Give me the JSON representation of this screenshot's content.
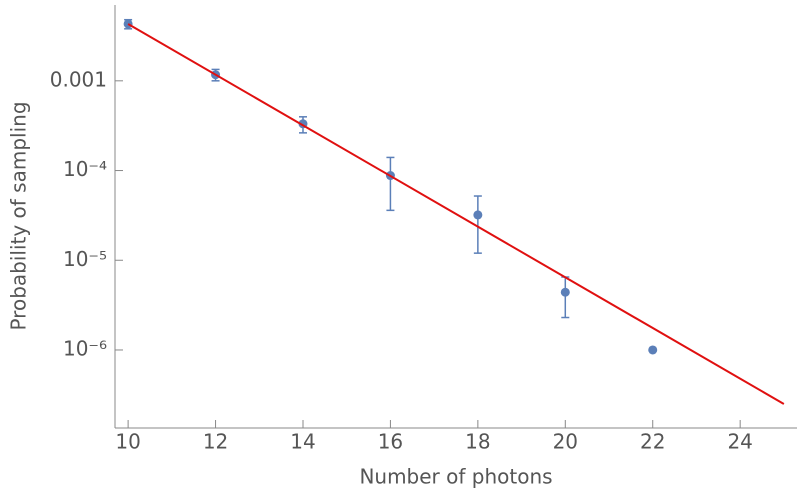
{
  "chart_data": {
    "type": "scatter",
    "x_label": "Number of photons",
    "y_label": "Probability of sampling",
    "log_y": true,
    "xlim": [
      9.7,
      25.3
    ],
    "ylim": [
      1.35e-07,
      0.007
    ],
    "xticks": [
      10,
      12,
      14,
      16,
      18,
      20,
      22,
      24
    ],
    "yticks": [
      {
        "value": 0.001,
        "label": "0.001"
      },
      {
        "value": 0.0001,
        "label": "10⁻⁴"
      },
      {
        "value": 1e-05,
        "label": "10⁻⁵"
      },
      {
        "value": 1e-06,
        "label": "10⁻⁶"
      }
    ],
    "series": [
      {
        "type": "scatter",
        "color": "#5b7fb8",
        "x": [
          10,
          12,
          14,
          16,
          18,
          20,
          22
        ],
        "values": [
          0.0043,
          0.00117,
          0.000332,
          8.8e-05,
          3.2e-05,
          4.4e-06,
          1e-06
        ],
        "y_low": [
          0.0038,
          0.001,
          0.000263,
          3.6e-05,
          1.2e-05,
          2.3e-06,
          null
        ],
        "y_high": [
          0.0048,
          0.00134,
          0.000397,
          0.00014,
          5.2e-05,
          6.5e-06,
          null
        ]
      },
      {
        "type": "line",
        "color": "#e01010",
        "x": [
          10,
          25
        ],
        "values": [
          0.0043,
          2.5e-07
        ]
      }
    ]
  }
}
